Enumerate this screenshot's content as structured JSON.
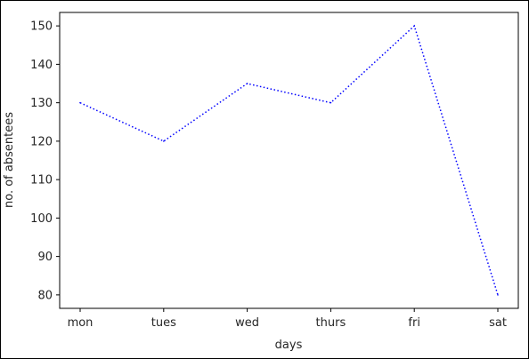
{
  "chart_data": {
    "type": "line",
    "title": "",
    "xlabel": "days",
    "ylabel": "no. of absentees",
    "categories": [
      "mon",
      "tues",
      "wed",
      "thurs",
      "fri",
      "sat"
    ],
    "series": [
      {
        "values": [
          130,
          120,
          135,
          130,
          150,
          80
        ],
        "color": "#0000ff",
        "line_style": "dotted"
      }
    ],
    "ylim": [
      76.5,
      153.5
    ],
    "yticks": [
      80,
      90,
      100,
      110,
      120,
      130,
      140,
      150
    ],
    "grid": false,
    "legend": "none"
  }
}
